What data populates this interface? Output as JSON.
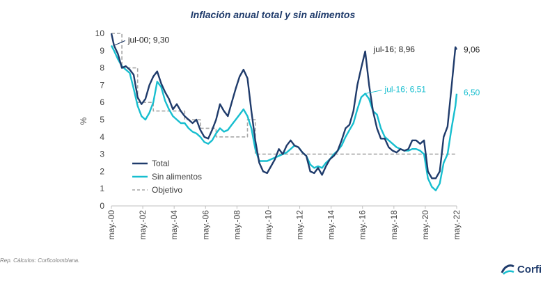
{
  "chart_data": {
    "type": "line",
    "title": "Inflación anual total y sin alimentos",
    "ylabel": "%",
    "ylim": [
      0,
      10
    ],
    "yticks": [
      0,
      1,
      2,
      3,
      4,
      5,
      6,
      7,
      8,
      9,
      10
    ],
    "xlim": [
      2000.33,
      2022.33
    ],
    "xticks": [
      {
        "label": "may.-00",
        "x": 2000.33
      },
      {
        "label": "may.-02",
        "x": 2002.33
      },
      {
        "label": "may.-04",
        "x": 2004.33
      },
      {
        "label": "may.-06",
        "x": 2006.33
      },
      {
        "label": "may.-08",
        "x": 2008.33
      },
      {
        "label": "may.-10",
        "x": 2010.33
      },
      {
        "label": "may.-12",
        "x": 2012.33
      },
      {
        "label": "may.-14",
        "x": 2014.33
      },
      {
        "label": "may.-16",
        "x": 2016.33
      },
      {
        "label": "may.-18",
        "x": 2018.33
      },
      {
        "label": "may.-20",
        "x": 2020.33
      },
      {
        "label": "may.-22",
        "x": 2022.33
      }
    ],
    "series": [
      {
        "name": "Total",
        "color": "#1f3b6b",
        "points": [
          [
            2000.33,
            10.0
          ],
          [
            2000.5,
            9.3
          ],
          [
            2000.75,
            8.8
          ],
          [
            2001.0,
            8.0
          ],
          [
            2001.25,
            8.1
          ],
          [
            2001.5,
            7.9
          ],
          [
            2001.75,
            7.6
          ],
          [
            2002.0,
            6.3
          ],
          [
            2002.25,
            5.9
          ],
          [
            2002.5,
            6.2
          ],
          [
            2002.75,
            7.0
          ],
          [
            2003.0,
            7.5
          ],
          [
            2003.25,
            7.8
          ],
          [
            2003.5,
            7.1
          ],
          [
            2003.75,
            6.6
          ],
          [
            2004.0,
            6.2
          ],
          [
            2004.25,
            5.6
          ],
          [
            2004.5,
            5.9
          ],
          [
            2004.75,
            5.5
          ],
          [
            2005.0,
            5.2
          ],
          [
            2005.25,
            5.0
          ],
          [
            2005.5,
            4.8
          ],
          [
            2005.75,
            5.0
          ],
          [
            2006.0,
            4.4
          ],
          [
            2006.25,
            4.0
          ],
          [
            2006.5,
            3.9
          ],
          [
            2006.75,
            4.4
          ],
          [
            2007.0,
            5.0
          ],
          [
            2007.25,
            5.9
          ],
          [
            2007.5,
            5.5
          ],
          [
            2007.75,
            5.2
          ],
          [
            2008.0,
            6.0
          ],
          [
            2008.25,
            6.8
          ],
          [
            2008.5,
            7.5
          ],
          [
            2008.75,
            7.9
          ],
          [
            2009.0,
            7.4
          ],
          [
            2009.25,
            5.5
          ],
          [
            2009.5,
            3.8
          ],
          [
            2009.75,
            2.5
          ],
          [
            2010.0,
            2.0
          ],
          [
            2010.25,
            1.9
          ],
          [
            2010.5,
            2.3
          ],
          [
            2010.75,
            2.7
          ],
          [
            2011.0,
            3.3
          ],
          [
            2011.25,
            3.0
          ],
          [
            2011.5,
            3.5
          ],
          [
            2011.75,
            3.8
          ],
          [
            2012.0,
            3.5
          ],
          [
            2012.25,
            3.4
          ],
          [
            2012.5,
            3.1
          ],
          [
            2012.75,
            2.9
          ],
          [
            2013.0,
            2.0
          ],
          [
            2013.25,
            1.9
          ],
          [
            2013.5,
            2.2
          ],
          [
            2013.75,
            1.8
          ],
          [
            2014.0,
            2.3
          ],
          [
            2014.25,
            2.7
          ],
          [
            2014.5,
            2.9
          ],
          [
            2014.75,
            3.2
          ],
          [
            2015.0,
            3.8
          ],
          [
            2015.25,
            4.5
          ],
          [
            2015.5,
            4.7
          ],
          [
            2015.75,
            5.5
          ],
          [
            2016.0,
            7.0
          ],
          [
            2016.25,
            8.0
          ],
          [
            2016.5,
            8.96
          ],
          [
            2016.75,
            7.0
          ],
          [
            2017.0,
            5.5
          ],
          [
            2017.25,
            4.5
          ],
          [
            2017.5,
            3.9
          ],
          [
            2017.75,
            3.9
          ],
          [
            2018.0,
            3.4
          ],
          [
            2018.25,
            3.2
          ],
          [
            2018.5,
            3.1
          ],
          [
            2018.75,
            3.3
          ],
          [
            2019.0,
            3.2
          ],
          [
            2019.25,
            3.3
          ],
          [
            2019.5,
            3.8
          ],
          [
            2019.75,
            3.8
          ],
          [
            2020.0,
            3.6
          ],
          [
            2020.25,
            3.8
          ],
          [
            2020.5,
            2.0
          ],
          [
            2020.75,
            1.6
          ],
          [
            2021.0,
            1.6
          ],
          [
            2021.25,
            2.0
          ],
          [
            2021.5,
            4.0
          ],
          [
            2021.75,
            4.6
          ],
          [
            2022.0,
            6.9
          ],
          [
            2022.25,
            9.2
          ],
          [
            2022.33,
            9.06
          ]
        ]
      },
      {
        "name": "Sin alimentos",
        "color": "#17becf",
        "points": [
          [
            2000.33,
            9.3
          ],
          [
            2000.5,
            9.0
          ],
          [
            2000.75,
            8.5
          ],
          [
            2001.0,
            8.1
          ],
          [
            2001.25,
            7.9
          ],
          [
            2001.5,
            7.7
          ],
          [
            2001.75,
            6.8
          ],
          [
            2002.0,
            5.8
          ],
          [
            2002.25,
            5.2
          ],
          [
            2002.5,
            5.0
          ],
          [
            2002.75,
            5.4
          ],
          [
            2003.0,
            6.0
          ],
          [
            2003.25,
            7.2
          ],
          [
            2003.5,
            6.9
          ],
          [
            2003.75,
            6.1
          ],
          [
            2004.0,
            5.6
          ],
          [
            2004.25,
            5.2
          ],
          [
            2004.5,
            5.0
          ],
          [
            2004.75,
            4.8
          ],
          [
            2005.0,
            4.8
          ],
          [
            2005.25,
            4.5
          ],
          [
            2005.5,
            4.3
          ],
          [
            2005.75,
            4.2
          ],
          [
            2006.0,
            4.0
          ],
          [
            2006.25,
            3.7
          ],
          [
            2006.5,
            3.6
          ],
          [
            2006.75,
            3.8
          ],
          [
            2007.0,
            4.2
          ],
          [
            2007.25,
            4.5
          ],
          [
            2007.5,
            4.3
          ],
          [
            2007.75,
            4.4
          ],
          [
            2008.0,
            4.7
          ],
          [
            2008.25,
            5.0
          ],
          [
            2008.5,
            5.3
          ],
          [
            2008.75,
            5.6
          ],
          [
            2009.0,
            5.2
          ],
          [
            2009.25,
            4.5
          ],
          [
            2009.5,
            3.3
          ],
          [
            2009.75,
            2.6
          ],
          [
            2010.0,
            2.6
          ],
          [
            2010.25,
            2.6
          ],
          [
            2010.5,
            2.7
          ],
          [
            2010.75,
            2.8
          ],
          [
            2011.0,
            2.9
          ],
          [
            2011.25,
            3.0
          ],
          [
            2011.5,
            3.1
          ],
          [
            2011.75,
            3.3
          ],
          [
            2012.0,
            3.5
          ],
          [
            2012.25,
            3.4
          ],
          [
            2012.5,
            3.1
          ],
          [
            2012.75,
            2.9
          ],
          [
            2013.0,
            2.4
          ],
          [
            2013.25,
            2.2
          ],
          [
            2013.5,
            2.3
          ],
          [
            2013.75,
            2.2
          ],
          [
            2014.0,
            2.5
          ],
          [
            2014.25,
            2.7
          ],
          [
            2014.5,
            3.0
          ],
          [
            2014.75,
            3.2
          ],
          [
            2015.0,
            3.5
          ],
          [
            2015.25,
            4.0
          ],
          [
            2015.5,
            4.4
          ],
          [
            2015.75,
            4.8
          ],
          [
            2016.0,
            5.6
          ],
          [
            2016.25,
            6.3
          ],
          [
            2016.5,
            6.51
          ],
          [
            2016.75,
            6.2
          ],
          [
            2017.0,
            5.5
          ],
          [
            2017.25,
            5.3
          ],
          [
            2017.5,
            4.5
          ],
          [
            2017.75,
            4.0
          ],
          [
            2018.0,
            3.8
          ],
          [
            2018.25,
            3.6
          ],
          [
            2018.5,
            3.4
          ],
          [
            2018.75,
            3.3
          ],
          [
            2019.0,
            3.2
          ],
          [
            2019.25,
            3.2
          ],
          [
            2019.5,
            3.3
          ],
          [
            2019.75,
            3.3
          ],
          [
            2020.0,
            3.2
          ],
          [
            2020.25,
            3.0
          ],
          [
            2020.5,
            1.6
          ],
          [
            2020.75,
            1.1
          ],
          [
            2021.0,
            0.9
          ],
          [
            2021.25,
            1.3
          ],
          [
            2021.5,
            2.5
          ],
          [
            2021.75,
            3.0
          ],
          [
            2022.0,
            4.5
          ],
          [
            2022.25,
            5.8
          ],
          [
            2022.33,
            6.5
          ]
        ]
      },
      {
        "name": "Objetivo",
        "color": "#a6a6a6",
        "dashed": true,
        "points": [
          [
            2000.33,
            10.0
          ],
          [
            2001.0,
            10.0
          ],
          [
            2001.0,
            8.0
          ],
          [
            2002.0,
            8.0
          ],
          [
            2002.0,
            6.0
          ],
          [
            2003.0,
            6.0
          ],
          [
            2003.0,
            5.5
          ],
          [
            2005.0,
            5.5
          ],
          [
            2005.0,
            5.0
          ],
          [
            2006.0,
            5.0
          ],
          [
            2006.0,
            4.5
          ],
          [
            2007.0,
            4.5
          ],
          [
            2007.0,
            4.0
          ],
          [
            2008.0,
            4.0
          ],
          [
            2008.0,
            4.0
          ],
          [
            2009.0,
            4.0
          ],
          [
            2009.0,
            5.0
          ],
          [
            2009.5,
            5.0
          ],
          [
            2009.5,
            3.0
          ],
          [
            2022.33,
            3.0
          ]
        ]
      }
    ],
    "annotations": [
      {
        "label": "jul-00; 9,30",
        "x": 2000.5,
        "y": 9.3,
        "series": "Total"
      },
      {
        "label": "jul-16; 8,96",
        "x": 2016.5,
        "y": 8.96,
        "series": "Total"
      },
      {
        "label": "jul-16; 6,51",
        "x": 2016.5,
        "y": 6.51,
        "series": "Sin alimentos"
      },
      {
        "label": "9,06",
        "x": 2022.33,
        "y": 9.06,
        "series": "Total"
      },
      {
        "label": "6,50",
        "x": 2022.33,
        "y": 6.5,
        "series": "Sin alimentos"
      }
    ],
    "legend": {
      "position": "bottom-left",
      "items": [
        "Total",
        "Sin alimentos",
        "Objetivo"
      ]
    }
  },
  "footer": {
    "source": "Rep. Cálculos: Corficolombiana.",
    "brand": "Corfi"
  }
}
